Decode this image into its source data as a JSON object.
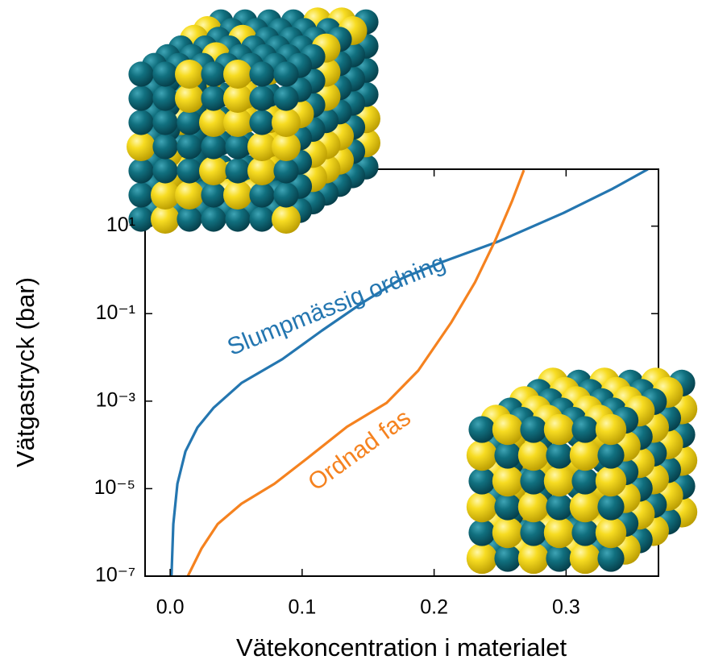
{
  "chart_data": {
    "type": "line",
    "x_label": "Vätekoncentration i materialet",
    "y_label": "Vätgastryck (bar)",
    "xlim": [
      -0.019,
      0.37
    ],
    "ylim": [
      1e-07,
      200
    ],
    "log_y": true,
    "xticks": [
      {
        "value": 0,
        "label": "0.0"
      },
      0.1,
      0.2,
      0.3
    ],
    "yticks": [
      {
        "value": 1e-07,
        "label": "10⁻⁷"
      },
      {
        "value": 1e-05,
        "label": "10⁻⁵"
      },
      {
        "value": 0.001,
        "label": "10⁻³"
      },
      {
        "value": 0.1,
        "label": "10⁻¹"
      },
      {
        "value": 10,
        "label": "10¹"
      }
    ],
    "series": [
      {
        "name": "Slumpmässig ordning",
        "color": "#2476b0",
        "x": [
          0.001,
          0.0024,
          0.0055,
          0.0116,
          0.0207,
          0.033,
          0.054,
          0.085,
          0.115,
          0.146,
          0.176,
          0.207,
          0.249,
          0.298,
          0.335,
          0.362
        ],
        "values": [
          1e-07,
          1.55e-06,
          1.29e-05,
          7.1e-05,
          0.00025,
          0.00071,
          0.0026,
          0.0091,
          0.041,
          0.18,
          0.65,
          1.55,
          4.5,
          20,
          71,
          200
        ]
      },
      {
        "name": "Ordnad fas",
        "color": "#f5821f",
        "x": [
          0.0134,
          0.0238,
          0.036,
          0.054,
          0.079,
          0.103,
          0.134,
          0.164,
          0.188,
          0.213,
          0.231,
          0.246,
          0.259,
          0.268
        ],
        "values": [
          1e-07,
          4.3e-07,
          1.55e-06,
          4.5e-06,
          1.29e-05,
          4.7e-05,
          0.00026,
          0.00091,
          0.005,
          0.063,
          0.52,
          4.5,
          37,
          190
        ]
      }
    ]
  }
}
